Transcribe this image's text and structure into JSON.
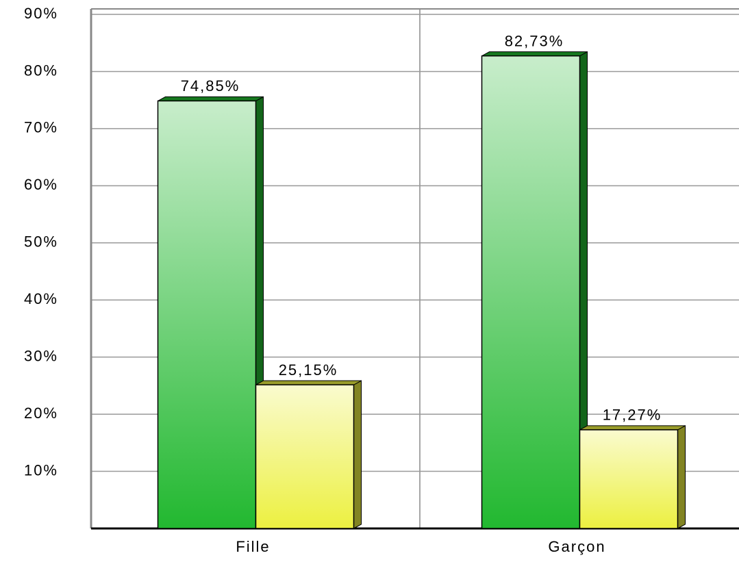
{
  "chart_data": {
    "type": "bar",
    "categories": [
      "Fille",
      "Garçon"
    ],
    "series": [
      {
        "color": "#22b830",
        "values": [
          74.85,
          82.73
        ],
        "value_labels": [
          "74,85%",
          "82,73%"
        ]
      },
      {
        "color": "#ecf040",
        "values": [
          25.15,
          17.27
        ],
        "value_labels": [
          "25,15%",
          "17,27%"
        ]
      }
    ],
    "ylim": [
      0,
      90
    ],
    "yticks": [
      {
        "value": 10,
        "label": "10%"
      },
      {
        "value": 20,
        "label": "20%"
      },
      {
        "value": 30,
        "label": "30%"
      },
      {
        "value": 40,
        "label": "40%"
      },
      {
        "value": 50,
        "label": "50%"
      },
      {
        "value": 60,
        "label": "60%"
      },
      {
        "value": 70,
        "label": "70%"
      },
      {
        "value": 80,
        "label": "80%"
      },
      {
        "value": 90,
        "label": "90%"
      }
    ],
    "grid": true
  }
}
